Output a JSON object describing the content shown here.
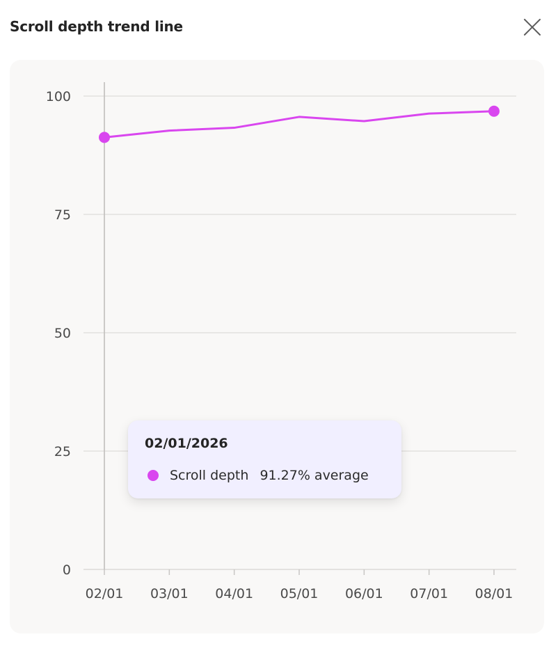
{
  "header": {
    "title": "Scroll depth trend line",
    "close_icon": "close-icon"
  },
  "colors": {
    "series": "#d946ef",
    "grid": "#e3e1df",
    "axis": "#c8c6c4",
    "card_bg": "#f9f8f7",
    "tooltip_bg": "#f1efff"
  },
  "chart_data": {
    "type": "line",
    "x": [
      "02/01",
      "03/01",
      "04/01",
      "05/01",
      "06/01",
      "07/01",
      "08/01"
    ],
    "series": [
      {
        "name": "Scroll depth",
        "values": [
          91.27,
          92.7,
          93.3,
          95.6,
          94.7,
          96.3,
          96.8
        ]
      }
    ],
    "yticks": [
      0,
      25,
      50,
      75,
      100
    ],
    "ylim": [
      0,
      100
    ],
    "grid": true,
    "markers_on": [
      "02/01",
      "08/01"
    ],
    "hover_index": 0
  },
  "tooltip": {
    "date": "02/01/2026",
    "series_name": "Scroll depth",
    "value_text": "91.27% average"
  }
}
